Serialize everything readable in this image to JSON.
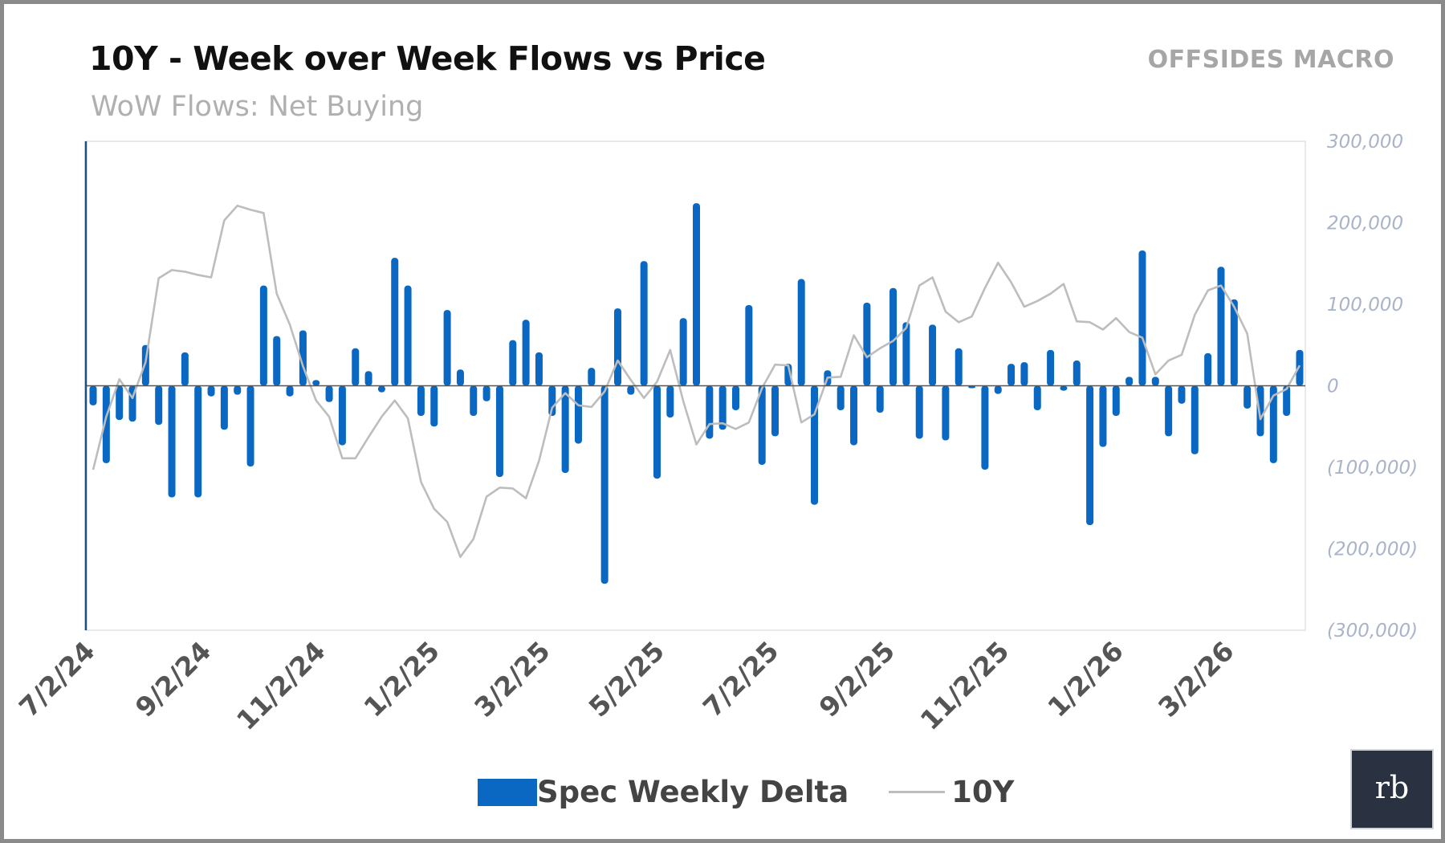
{
  "header": {
    "title": "10Y - Week over Week Flows vs Price",
    "subtitle": "WoW Flows: Net Buying",
    "brand": "OFFSIDES MACRO"
  },
  "logo": {
    "text": "rb"
  },
  "legend": {
    "bar_label": "Spec Weekly Delta",
    "line_label": "10Y"
  },
  "colors": {
    "bar": "#0a67c2",
    "line": "#bdbdbd",
    "axis_labels": "#a9b4c8",
    "zero_line": "#555555",
    "left_axis": "#1f4e79"
  },
  "chart_data": {
    "type": "bar+line",
    "title": "10Y - Week over Week Flows vs Price",
    "subtitle": "WoW Flows: Net Buying",
    "x_start": "7/2/24",
    "x_frequency": "weekly",
    "x_tick_labels": [
      "7/2/24",
      "9/2/24",
      "11/2/24",
      "1/2/25",
      "3/2/25",
      "5/2/25",
      "7/2/25",
      "9/2/25",
      "11/2/25",
      "1/2/26",
      "3/2/26"
    ],
    "y_tick_labels": [
      "300,000",
      "200,000",
      "100,000",
      "0",
      "(100,000)",
      "(200,000)",
      "(300,000)"
    ],
    "ylim": [
      -300000,
      300000
    ],
    "y_axis_side": "right",
    "grid": false,
    "legend_position": "bottom",
    "series": [
      {
        "name": "Spec Weekly Delta",
        "type": "bar",
        "values": [
          -24000,
          -95000,
          -42000,
          -44000,
          50000,
          -48000,
          -137000,
          41000,
          -137000,
          -13000,
          -54000,
          -11000,
          -99000,
          123000,
          61000,
          -13000,
          68000,
          7000,
          -20000,
          -73000,
          46000,
          18000,
          -8000,
          157000,
          123000,
          -37000,
          -50000,
          93000,
          20000,
          -37000,
          -19000,
          -112000,
          56000,
          81000,
          41000,
          -37000,
          -107000,
          -71000,
          22000,
          -243000,
          95000,
          -11000,
          153000,
          -114000,
          -39000,
          83000,
          224000,
          -65000,
          -54000,
          -30000,
          99000,
          -97000,
          -62000,
          27000,
          131000,
          -146000,
          19000,
          -30000,
          -73000,
          102000,
          -33000,
          120000,
          78000,
          -65000,
          75000,
          -67000,
          46000,
          -3000,
          -103000,
          -10000,
          27000,
          29000,
          -30000,
          44000,
          -6000,
          31000,
          -171000,
          -75000,
          -37000,
          11000,
          166000,
          11000,
          -62000,
          -22000,
          -84000,
          40000,
          146000,
          106000,
          -28000,
          -62000,
          -95000,
          -37000,
          44000
        ]
      },
      {
        "name": "10Y",
        "type": "line",
        "values_on_flow_scale": [
          -103000,
          -38000,
          8000,
          -15000,
          29000,
          132000,
          142000,
          140000,
          136000,
          133000,
          203000,
          221000,
          216000,
          212000,
          113000,
          75000,
          24000,
          -18000,
          -38000,
          -89000,
          -89000,
          -63000,
          -38000,
          -18000,
          -40000,
          -118000,
          -151000,
          -167000,
          -210000,
          -188000,
          -136000,
          -125000,
          -126000,
          -138000,
          -92000,
          -27000,
          -9000,
          -24000,
          -26000,
          -7000,
          31000,
          7000,
          -15000,
          5000,
          44000,
          -19000,
          -72000,
          -47000,
          -46000,
          -53000,
          -45000,
          -3000,
          26000,
          25000,
          -45000,
          -35000,
          10000,
          11000,
          62000,
          35000,
          46000,
          55000,
          71000,
          123000,
          133000,
          91000,
          78000,
          85000,
          120000,
          151000,
          127000,
          97000,
          104000,
          113000,
          125000,
          79000,
          78000,
          69000,
          83000,
          66000,
          59000,
          14000,
          31000,
          38000,
          87000,
          117000,
          123000,
          97000,
          64000,
          -41000,
          -12000,
          -4000,
          25000
        ]
      }
    ]
  }
}
